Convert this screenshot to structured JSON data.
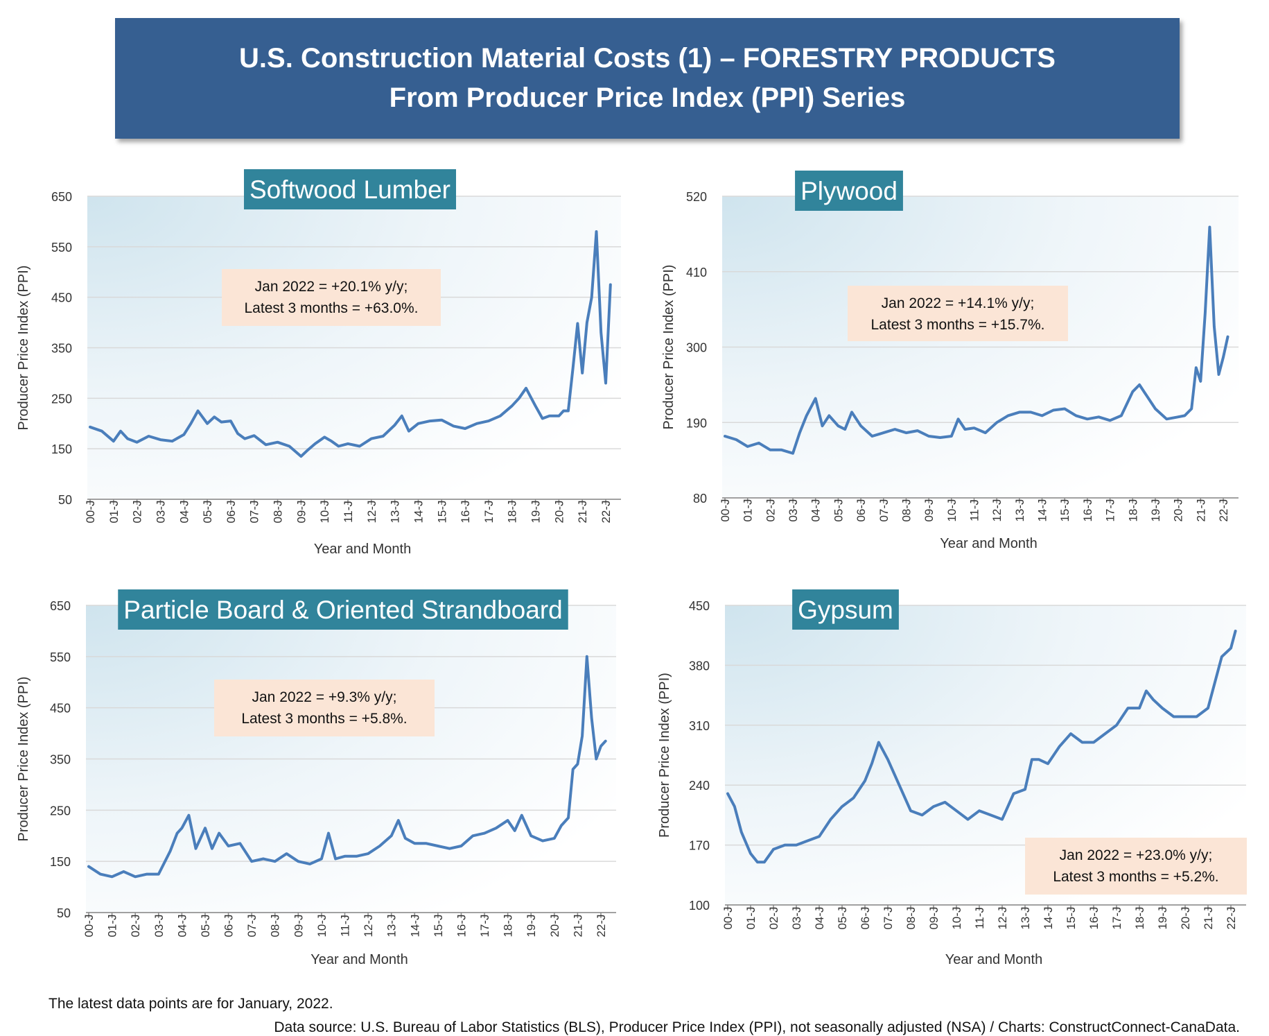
{
  "banner": {
    "line1": "U.S. Construction Material Costs (1) – FORESTRY PRODUCTS",
    "line2": "From Producer Price Index (PPI) Series"
  },
  "footnote": {
    "latest": "The latest data points are for January, 2022.",
    "source": "Data source: U.S. Bureau of Labor Statistics (BLS), Producer Price Index (PPI), not seasonally adjusted (NSA) / Charts: ConstructConnect-CanaData."
  },
  "colors": {
    "line": "#4a7ebb",
    "title_box": "#31849b",
    "annotation_box": "#fbe5d6",
    "banner": "#365f91",
    "gridline": "#d9d9d9"
  },
  "chart_data": [
    {
      "type": "line",
      "title": "Softwood Lumber",
      "ylabel": "Producer Price Index (PPI)",
      "xlabel": "Year and Month",
      "ylim": [
        50,
        650
      ],
      "yticks": [
        50,
        150,
        250,
        350,
        450,
        550,
        650
      ],
      "xticklabels": [
        "00-J",
        "01-J",
        "02-J",
        "03-J",
        "04-J",
        "05-J",
        "06-J",
        "07-J",
        "08-J",
        "09-J",
        "10-J",
        "11-J",
        "12-J",
        "13-J",
        "14-J",
        "15-J",
        "16-J",
        "17-J",
        "18-J",
        "19-J",
        "20-J",
        "21-J",
        "22-J"
      ],
      "annotation": [
        "Jan 2022 = +20.1% y/y;",
        "Latest 3 months = +63.0%."
      ],
      "grid": "horizontal",
      "series": [
        {
          "x": [
            0,
            0.5,
            1,
            1.3,
            1.6,
            2,
            2.5,
            3,
            3.5,
            4,
            4.3,
            4.6,
            5,
            5.3,
            5.6,
            6,
            6.3,
            6.6,
            7,
            7.5,
            8,
            8.5,
            9,
            9.3,
            9.6,
            10,
            10.3,
            10.6,
            11,
            11.5,
            12,
            12.5,
            13,
            13.3,
            13.6,
            14,
            14.5,
            15,
            15.5,
            16,
            16.5,
            17,
            17.5,
            18,
            18.3,
            18.6,
            19,
            19.3,
            19.6,
            20,
            20.2,
            20.4,
            20.6,
            20.8,
            21,
            21.2,
            21.4,
            21.6,
            21.8,
            22,
            22.2
          ],
          "y": [
            193,
            185,
            165,
            185,
            170,
            163,
            175,
            168,
            165,
            178,
            200,
            225,
            200,
            213,
            203,
            205,
            180,
            170,
            176,
            158,
            163,
            155,
            135,
            148,
            160,
            173,
            165,
            155,
            160,
            155,
            170,
            175,
            197,
            215,
            185,
            200,
            205,
            207,
            195,
            190,
            200,
            205,
            215,
            235,
            250,
            270,
            235,
            210,
            215,
            215,
            225,
            225,
            310,
            398,
            300,
            400,
            450,
            580,
            380,
            280,
            475
          ]
        }
      ]
    },
    {
      "type": "line",
      "title": "Plywood",
      "ylabel": "Producer Price Index (PPI)",
      "xlabel": "Year and Month",
      "ylim": [
        80,
        520
      ],
      "yticks": [
        80,
        190,
        300,
        410,
        520
      ],
      "xticklabels": [
        "00-J",
        "01-J",
        "02-J",
        "03-J",
        "04-J",
        "05-J",
        "06-J",
        "07-J",
        "08-J",
        "09-J",
        "10-J",
        "11-J",
        "12-J",
        "13-J",
        "14-J",
        "15-J",
        "16-J",
        "17-J",
        "18-J",
        "19-J",
        "20-J",
        "21-J",
        "22-J"
      ],
      "annotation": [
        "Jan 2022 = +14.1% y/y;",
        "Latest 3 months = +15.7%."
      ],
      "grid": "horizontal",
      "series": [
        {
          "x": [
            0,
            0.5,
            1,
            1.5,
            2,
            2.5,
            3,
            3.3,
            3.6,
            4,
            4.3,
            4.6,
            5,
            5.3,
            5.6,
            6,
            6.5,
            7,
            7.5,
            8,
            8.5,
            9,
            9.5,
            10,
            10.3,
            10.6,
            11,
            11.5,
            12,
            12.5,
            13,
            13.5,
            14,
            14.5,
            15,
            15.5,
            16,
            16.5,
            17,
            17.5,
            18,
            18.3,
            18.6,
            19,
            19.5,
            20,
            20.3,
            20.6,
            20.8,
            21,
            21.2,
            21.4,
            21.6,
            21.8,
            22,
            22.2
          ],
          "y": [
            170,
            165,
            155,
            160,
            150,
            150,
            145,
            175,
            200,
            225,
            185,
            200,
            185,
            180,
            205,
            185,
            170,
            175,
            180,
            175,
            178,
            170,
            168,
            170,
            195,
            180,
            182,
            175,
            190,
            200,
            205,
            205,
            200,
            208,
            210,
            200,
            195,
            198,
            193,
            200,
            235,
            245,
            230,
            210,
            195,
            198,
            200,
            210,
            270,
            250,
            350,
            475,
            330,
            260,
            285,
            315
          ]
        }
      ]
    },
    {
      "type": "line",
      "title": "Particle Board & Oriented Strandboard",
      "ylabel": "Producer Price Index (PPI)",
      "xlabel": "Year and Month",
      "ylim": [
        50,
        650
      ],
      "yticks": [
        50,
        150,
        250,
        350,
        450,
        550,
        650
      ],
      "xticklabels": [
        "00-J",
        "01-J",
        "02-J",
        "03-J",
        "04-J",
        "05-J",
        "06-J",
        "07-J",
        "08-J",
        "09-J",
        "10-J",
        "11-J",
        "12-J",
        "13-J",
        "14-J",
        "15-J",
        "16-J",
        "17-J",
        "18-J",
        "19-J",
        "20-J",
        "21-J",
        "22-J"
      ],
      "annotation": [
        "Jan 2022 = +9.3% y/y;",
        "Latest 3 months = +5.8%."
      ],
      "grid": "horizontal",
      "series": [
        {
          "x": [
            0,
            0.5,
            1,
            1.5,
            2,
            2.5,
            3,
            3.5,
            3.8,
            4,
            4.3,
            4.6,
            5,
            5.3,
            5.6,
            6,
            6.5,
            7,
            7.5,
            8,
            8.5,
            9,
            9.5,
            10,
            10.3,
            10.6,
            11,
            11.5,
            12,
            12.5,
            13,
            13.3,
            13.6,
            14,
            14.5,
            15,
            15.5,
            16,
            16.5,
            17,
            17.5,
            18,
            18.3,
            18.6,
            19,
            19.5,
            20,
            20.3,
            20.6,
            20.8,
            21,
            21.2,
            21.4,
            21.6,
            21.8,
            22,
            22.2
          ],
          "y": [
            140,
            125,
            120,
            130,
            120,
            125,
            125,
            170,
            205,
            215,
            240,
            175,
            215,
            175,
            205,
            180,
            185,
            150,
            155,
            150,
            165,
            150,
            145,
            155,
            205,
            155,
            160,
            160,
            165,
            180,
            200,
            230,
            195,
            185,
            185,
            180,
            175,
            180,
            200,
            205,
            215,
            230,
            210,
            240,
            200,
            190,
            195,
            220,
            235,
            330,
            340,
            395,
            550,
            430,
            350,
            375,
            385
          ]
        }
      ]
    },
    {
      "type": "line",
      "title": "Gypsum",
      "ylabel": "Producer Price Index (PPI)",
      "xlabel": "Year and Month",
      "ylim": [
        100,
        450
      ],
      "yticks": [
        100,
        170,
        240,
        310,
        380,
        450
      ],
      "xticklabels": [
        "00-J",
        "01-J",
        "02-J",
        "03-J",
        "04-J",
        "05-J",
        "06-J",
        "07-J",
        "08-J",
        "09-J",
        "10-J",
        "11-J",
        "12-J",
        "13-J",
        "14-J",
        "15-J",
        "16-J",
        "17-J",
        "18-J",
        "19-J",
        "20-J",
        "21-J",
        "22-J"
      ],
      "annotation": [
        "Jan 2022 = +23.0% y/y;",
        "Latest 3 months = +5.2%."
      ],
      "grid": "horizontal",
      "series": [
        {
          "x": [
            0,
            0.3,
            0.6,
            1,
            1.3,
            1.6,
            2,
            2.5,
            3,
            3.5,
            4,
            4.5,
            5,
            5.5,
            6,
            6.3,
            6.6,
            7,
            7.5,
            8,
            8.5,
            9,
            9.5,
            10,
            10.5,
            11,
            11.5,
            12,
            12.5,
            13,
            13.3,
            13.6,
            14,
            14.5,
            15,
            15.5,
            16,
            16.5,
            17,
            17.5,
            18,
            18.3,
            18.6,
            19,
            19.5,
            20,
            20.5,
            21,
            21.3,
            21.6,
            22,
            22.2
          ],
          "y": [
            230,
            215,
            185,
            160,
            150,
            150,
            165,
            170,
            170,
            175,
            180,
            200,
            215,
            225,
            245,
            265,
            290,
            270,
            240,
            210,
            205,
            215,
            220,
            210,
            200,
            210,
            205,
            200,
            230,
            235,
            270,
            270,
            265,
            285,
            300,
            290,
            290,
            300,
            310,
            330,
            330,
            350,
            340,
            330,
            320,
            320,
            320,
            330,
            360,
            390,
            400,
            420
          ]
        }
      ]
    }
  ]
}
